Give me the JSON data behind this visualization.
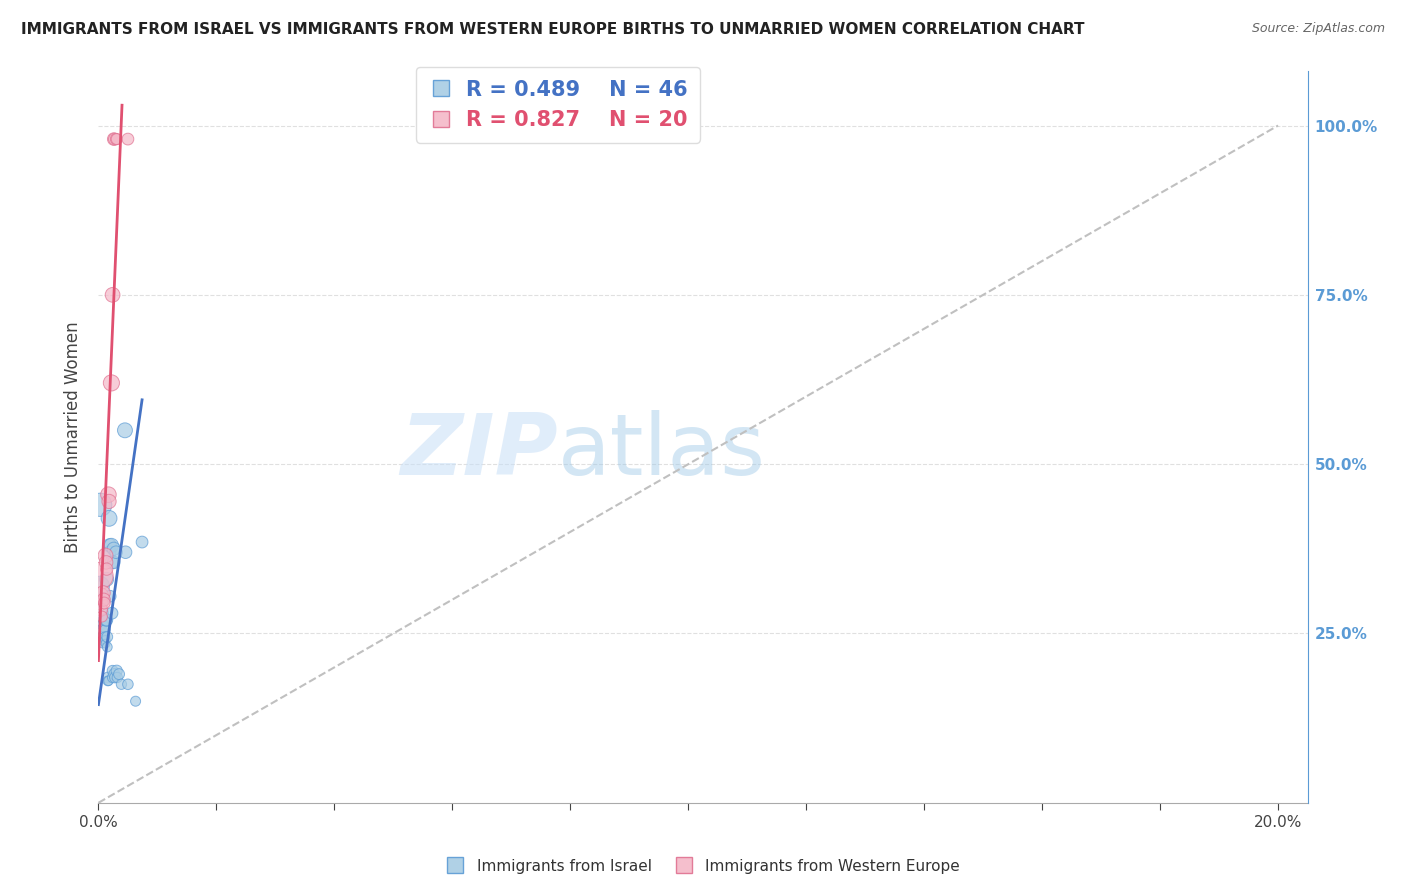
{
  "title": "IMMIGRANTS FROM ISRAEL VS IMMIGRANTS FROM WESTERN EUROPE BIRTHS TO UNMARRIED WOMEN CORRELATION CHART",
  "source": "Source: ZipAtlas.com",
  "ylabel": "Births to Unmarried Women",
  "legend_blue_label": "Immigrants from Israel",
  "legend_pink_label": "Immigrants from Western Europe",
  "blue_color": "#a8cce4",
  "pink_color": "#f4b8c8",
  "blue_edge_color": "#5b9bd5",
  "pink_edge_color": "#e07090",
  "blue_line_color": "#4472c4",
  "pink_line_color": "#e05070",
  "diagonal_color": "#c0c0c0",
  "background_color": "#ffffff",
  "grid_color": "#e0e0e0",
  "right_tick_color": "#5b9bd5",
  "blue_r": "0.489",
  "blue_n": "46",
  "pink_r": "0.827",
  "pink_n": "20",
  "blue_points": [
    [
      0.0002,
      0.32
    ],
    [
      0.0003,
      0.44
    ],
    [
      0.0005,
      0.28
    ],
    [
      0.0005,
      0.265
    ],
    [
      0.0006,
      0.255
    ],
    [
      0.0006,
      0.245
    ],
    [
      0.0007,
      0.24
    ],
    [
      0.0007,
      0.235
    ],
    [
      0.0008,
      0.3
    ],
    [
      0.001,
      0.27
    ],
    [
      0.001,
      0.26
    ],
    [
      0.0011,
      0.255
    ],
    [
      0.0011,
      0.245
    ],
    [
      0.0012,
      0.24
    ],
    [
      0.0012,
      0.235
    ],
    [
      0.0013,
      0.27
    ],
    [
      0.0014,
      0.33
    ],
    [
      0.0014,
      0.27
    ],
    [
      0.0015,
      0.245
    ],
    [
      0.0015,
      0.23
    ],
    [
      0.0016,
      0.185
    ],
    [
      0.0016,
      0.18
    ],
    [
      0.0017,
      0.18
    ],
    [
      0.0018,
      0.42
    ],
    [
      0.0019,
      0.38
    ],
    [
      0.0019,
      0.37
    ],
    [
      0.002,
      0.305
    ],
    [
      0.0022,
      0.38
    ],
    [
      0.0022,
      0.355
    ],
    [
      0.0023,
      0.28
    ],
    [
      0.0024,
      0.195
    ],
    [
      0.0024,
      0.185
    ],
    [
      0.0026,
      0.375
    ],
    [
      0.0026,
      0.355
    ],
    [
      0.0027,
      0.19
    ],
    [
      0.0028,
      0.185
    ],
    [
      0.003,
      0.37
    ],
    [
      0.0031,
      0.195
    ],
    [
      0.0032,
      0.185
    ],
    [
      0.0035,
      0.19
    ],
    [
      0.0039,
      0.175
    ],
    [
      0.0045,
      0.55
    ],
    [
      0.0046,
      0.37
    ],
    [
      0.005,
      0.175
    ],
    [
      0.0063,
      0.15
    ],
    [
      0.0074,
      0.385
    ]
  ],
  "blue_sizes": [
    200,
    280,
    100,
    80,
    65,
    55,
    45,
    38,
    90,
    75,
    62,
    56,
    50,
    45,
    40,
    80,
    100,
    75,
    60,
    50,
    60,
    50,
    45,
    130,
    95,
    82,
    70,
    105,
    88,
    72,
    60,
    55,
    92,
    82,
    65,
    60,
    82,
    65,
    55,
    62,
    55,
    115,
    82,
    58,
    52,
    72
  ],
  "pink_points": [
    [
      0.0002,
      0.335
    ],
    [
      0.0003,
      0.305
    ],
    [
      0.0004,
      0.295
    ],
    [
      0.0005,
      0.285
    ],
    [
      0.0006,
      0.275
    ],
    [
      0.0008,
      0.31
    ],
    [
      0.0009,
      0.3
    ],
    [
      0.001,
      0.295
    ],
    [
      0.0012,
      0.365
    ],
    [
      0.0013,
      0.355
    ],
    [
      0.0014,
      0.345
    ],
    [
      0.0017,
      0.455
    ],
    [
      0.0018,
      0.445
    ],
    [
      0.0022,
      0.62
    ],
    [
      0.0024,
      0.75
    ],
    [
      0.0026,
      0.98
    ],
    [
      0.0027,
      0.98
    ],
    [
      0.003,
      0.98
    ],
    [
      0.0031,
      0.98
    ],
    [
      0.005,
      0.98
    ]
  ],
  "pink_sizes": [
    380,
    155,
    105,
    82,
    62,
    105,
    88,
    72,
    115,
    95,
    78,
    125,
    105,
    135,
    112,
    82,
    72,
    68,
    62,
    72
  ],
  "blue_line": {
    "x0": 0.0,
    "y0": 0.145,
    "x1": 0.0074,
    "y1": 0.595
  },
  "pink_line": {
    "x0": 0.0,
    "y0": 0.21,
    "x1": 0.004,
    "y1": 1.03
  },
  "diagonal_line": {
    "x0": 0.0,
    "y0": 0.0,
    "x1": 0.2,
    "y1": 1.0
  },
  "xlim": [
    0.0,
    0.205
  ],
  "ylim": [
    0.0,
    1.08
  ],
  "x_tick_positions": [
    0.0,
    0.02,
    0.04,
    0.06,
    0.08,
    0.1,
    0.12,
    0.14,
    0.16,
    0.18,
    0.2
  ],
  "x_tick_labels": [
    "0.0%",
    "",
    "",
    "",
    "",
    "",
    "",
    "",
    "",
    "",
    "20.0%"
  ],
  "right_yticks": [
    0.25,
    0.5,
    0.75,
    1.0
  ],
  "right_yticklabels": [
    "25.0%",
    "50.0%",
    "75.0%",
    "100.0%"
  ],
  "grid_yticks": [
    0.25,
    0.5,
    0.75,
    1.0
  ]
}
